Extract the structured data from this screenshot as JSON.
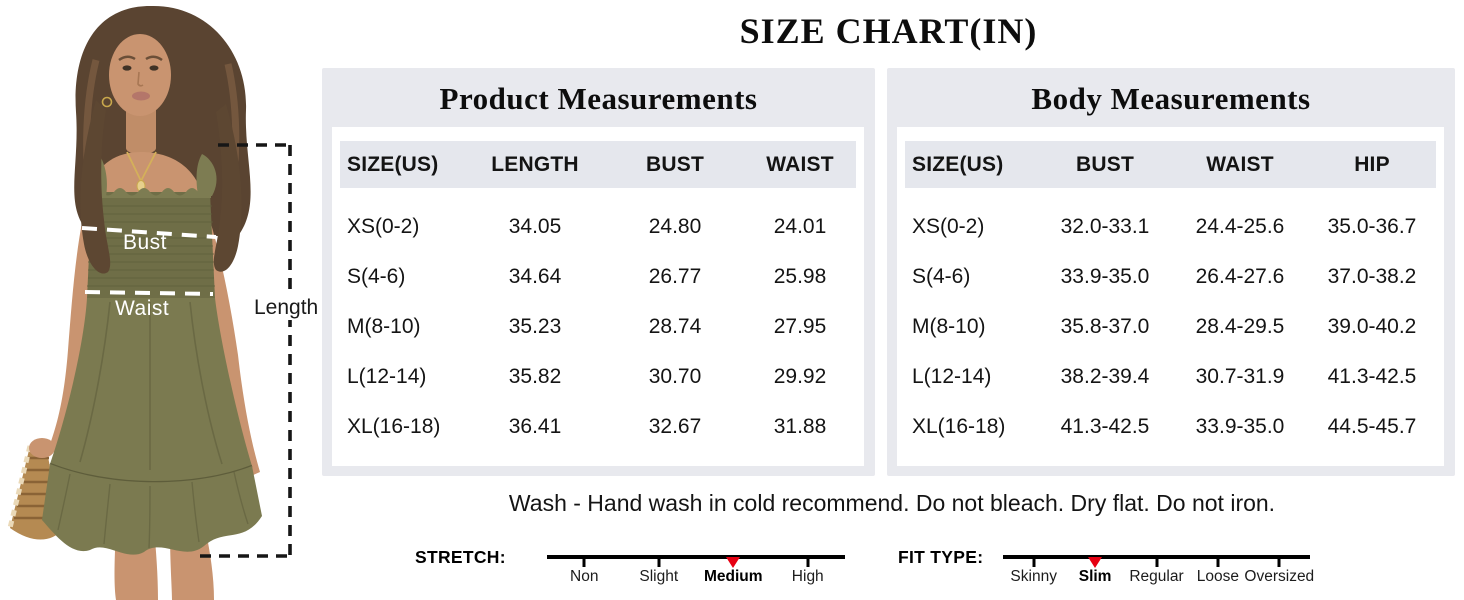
{
  "title": "SIZE CHART(IN)",
  "model": {
    "bust_label": "Bust",
    "waist_label": "Waist",
    "length_label": "Length"
  },
  "product_table": {
    "title": "Product Measurements",
    "headers": [
      "SIZE(US)",
      "LENGTH",
      "BUST",
      "WAIST"
    ],
    "rows": [
      [
        "XS(0-2)",
        "34.05",
        "24.80",
        "24.01"
      ],
      [
        "S(4-6)",
        "34.64",
        "26.77",
        "25.98"
      ],
      [
        "M(8-10)",
        "35.23",
        "28.74",
        "27.95"
      ],
      [
        "L(12-14)",
        "35.82",
        "30.70",
        "29.92"
      ],
      [
        "XL(16-18)",
        "36.41",
        "32.67",
        "31.88"
      ]
    ]
  },
  "body_table": {
    "title": "Body Measurements",
    "headers": [
      "SIZE(US)",
      "BUST",
      "WAIST",
      "HIP"
    ],
    "rows": [
      [
        "XS(0-2)",
        "32.0-33.1",
        "24.4-25.6",
        "35.0-36.7"
      ],
      [
        "S(4-6)",
        "33.9-35.0",
        "26.4-27.6",
        "37.0-38.2"
      ],
      [
        "M(8-10)",
        "35.8-37.0",
        "28.4-29.5",
        "39.0-40.2"
      ],
      [
        "L(12-14)",
        "38.2-39.4",
        "30.7-31.9",
        "41.3-42.5"
      ],
      [
        "XL(16-18)",
        "41.3-42.5",
        "33.9-35.0",
        "44.5-45.7"
      ]
    ]
  },
  "care_note": "Wash - Hand wash in cold recommend. Do not bleach. Dry flat. Do not iron.",
  "scales": [
    {
      "label": "STRETCH:",
      "options": [
        "Non",
        "Slight",
        "Medium",
        "High"
      ],
      "selected": "Medium"
    },
    {
      "label": "FIT TYPE:",
      "options": [
        "Skinny",
        "Slim",
        "Regular",
        "Loose",
        "Oversized"
      ],
      "selected": "Slim"
    }
  ],
  "colors": {
    "marker_red": "#e60012",
    "panel_gray": "#e8e9ee",
    "header_strip": "#e5e7ed",
    "dress_olive": "#73724a",
    "skirt_olive": "#7b7a50"
  }
}
